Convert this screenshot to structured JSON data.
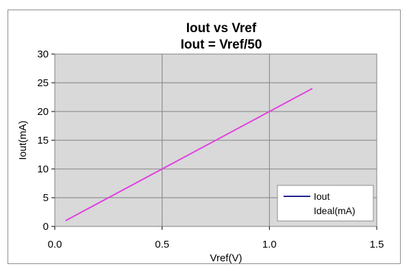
{
  "chart_data": {
    "type": "line",
    "title": "Iout vs Vref",
    "subtitle": "Iout = Vref/50",
    "xlabel": "Vref(V)",
    "ylabel": "Iout(mA)",
    "xlim": [
      0.0,
      1.5
    ],
    "ylim": [
      0,
      30
    ],
    "x_ticks": [
      "0.0",
      "0.5",
      "1.0",
      "1.5"
    ],
    "y_ticks": [
      "0",
      "5",
      "10",
      "15",
      "20",
      "25",
      "30"
    ],
    "grid": true,
    "legend_position": "bottom-right",
    "series": [
      {
        "name": "Iout",
        "color": "#1f1f8f",
        "x": [],
        "y": []
      },
      {
        "name": "Ideal(mA)",
        "color": "#e040e0",
        "x": [
          0.05,
          1.2
        ],
        "y": [
          1,
          24
        ]
      }
    ],
    "colors": {
      "plot_background": "#d9d9d9",
      "gridline": "#808080"
    }
  }
}
